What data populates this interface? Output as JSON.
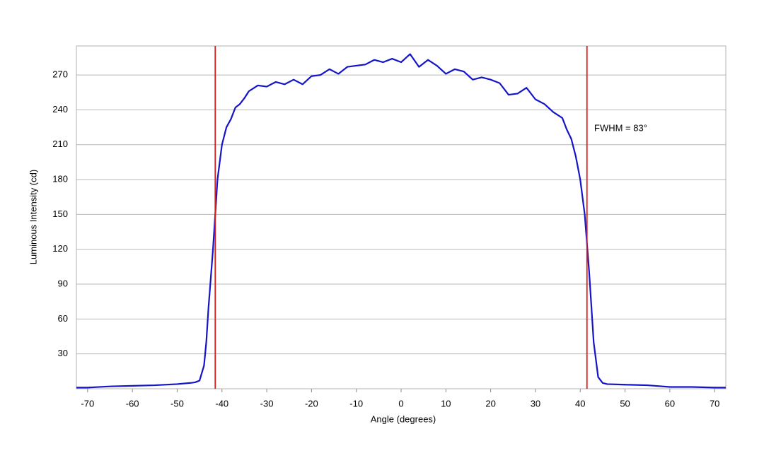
{
  "chart_data": {
    "type": "line",
    "xlabel": "Angle (degrees)",
    "ylabel": "Luminous Intensity (cd)",
    "x": [
      -72.5,
      -70,
      -65,
      -60,
      -55,
      -50,
      -47,
      -46,
      -45,
      -44,
      -43.5,
      -43,
      -42,
      -41.5,
      -41,
      -40,
      -39,
      -38,
      -37,
      -36,
      -35,
      -34,
      -32,
      -30,
      -28,
      -26,
      -24,
      -22,
      -20,
      -18,
      -16,
      -14,
      -12,
      -10,
      -8,
      -6,
      -4,
      -2,
      0,
      2,
      4,
      6,
      8,
      10,
      12,
      14,
      16,
      18,
      20,
      22,
      24,
      26,
      28,
      30,
      32,
      34,
      36,
      37,
      38,
      39,
      40,
      41,
      42,
      43,
      44,
      45,
      46,
      50,
      55,
      60,
      65,
      70,
      72.5
    ],
    "series": [
      {
        "name": "Intensity",
        "color": "#1515c8",
        "values": [
          1,
          1,
          2,
          2.5,
          3,
          4,
          5,
          5.5,
          7,
          20,
          40,
          70,
          120,
          150,
          180,
          210,
          225,
          232,
          242,
          245,
          250,
          256,
          261,
          260,
          264,
          262,
          266,
          262,
          269,
          270,
          275,
          271,
          277,
          278,
          279,
          283,
          281,
          284,
          281,
          288,
          277,
          283,
          278,
          271,
          275,
          273,
          266,
          268,
          266,
          263,
          253,
          254,
          259,
          249,
          245,
          238,
          233,
          223,
          215,
          200,
          180,
          150,
          100,
          40,
          10,
          5,
          4,
          3.5,
          3,
          1.5,
          1.5,
          1,
          1
        ]
      }
    ],
    "vlines": [
      -41.5,
      41.5
    ],
    "vline_color": "#d42020",
    "annotation": "FWHM = 83°",
    "xlim": [
      -72.5,
      72.5
    ],
    "xticks": [
      -70,
      -60,
      -50,
      -40,
      -30,
      -20,
      -10,
      0,
      10,
      20,
      30,
      40,
      50,
      60,
      70
    ],
    "ylim": [
      0,
      295
    ],
    "yticks": [
      30,
      60,
      90,
      120,
      150,
      180,
      210,
      240,
      270
    ],
    "grid": true
  }
}
